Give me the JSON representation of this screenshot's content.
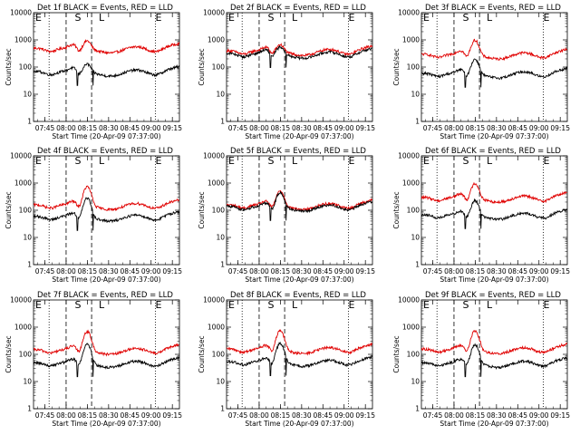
{
  "colors": {
    "events": "#000000",
    "lld": "#e00000",
    "axes": "#000000",
    "background": "#ffffff"
  },
  "chart_data": {
    "type": "line",
    "x_ticks": [
      "07:45",
      "08:00",
      "08:15",
      "08:30",
      "08:45",
      "09:00",
      "09:15"
    ],
    "xlabel": "Start Time (20-Apr-09 07:37:00)",
    "ylabel": "Counts/sec",
    "y_ticks": [
      "1",
      "10",
      "100",
      "1000",
      "10000"
    ],
    "y_scale": "log",
    "ylim": [
      1,
      10000
    ],
    "xlim_minutes_after_start": [
      0,
      103
    ],
    "markers": [
      {
        "label": "E",
        "x": "07:37"
      },
      {
        "label": "S",
        "x": "08:08"
      },
      {
        "label": "L",
        "x": "08:25"
      },
      {
        "label": "E",
        "x": "09:05"
      }
    ],
    "dotted_lines": [
      "07:48",
      "09:03"
    ],
    "dashed_lines": [
      "08:00",
      "08:18"
    ],
    "panels": [
      {
        "title": "Det 1f BLACK = Events, RED = LLD",
        "black_base": 70,
        "red_base": 500,
        "peak": 2.0
      },
      {
        "title": "Det 2f BLACK = Events, RED = LLD",
        "black_base": 320,
        "red_base": 400,
        "peak": 1.8
      },
      {
        "title": "Det 3f BLACK = Events, RED = LLD",
        "black_base": 60,
        "red_base": 300,
        "peak": 3.5
      },
      {
        "title": "Det 4f BLACK = Events, RED = LLD",
        "black_base": 60,
        "red_base": 160,
        "peak": 5.0
      },
      {
        "title": "Det 5f BLACK = Events, RED = LLD",
        "black_base": 140,
        "red_base": 160,
        "peak": 3.5
      },
      {
        "title": "Det 6f BLACK = Events, RED = LLD",
        "black_base": 70,
        "red_base": 300,
        "peak": 3.5
      },
      {
        "title": "Det 7f BLACK = Events, RED = LLD",
        "black_base": 50,
        "red_base": 150,
        "peak": 5.0
      },
      {
        "title": "Det 8f BLACK = Events, RED = LLD",
        "black_base": 55,
        "red_base": 160,
        "peak": 5.0
      },
      {
        "title": "Det 9f BLACK = Events, RED = LLD",
        "black_base": 50,
        "red_base": 160,
        "peak": 5.0
      }
    ],
    "series": [
      {
        "name": "BLACK = Events"
      },
      {
        "name": "RED = LLD"
      }
    ]
  }
}
